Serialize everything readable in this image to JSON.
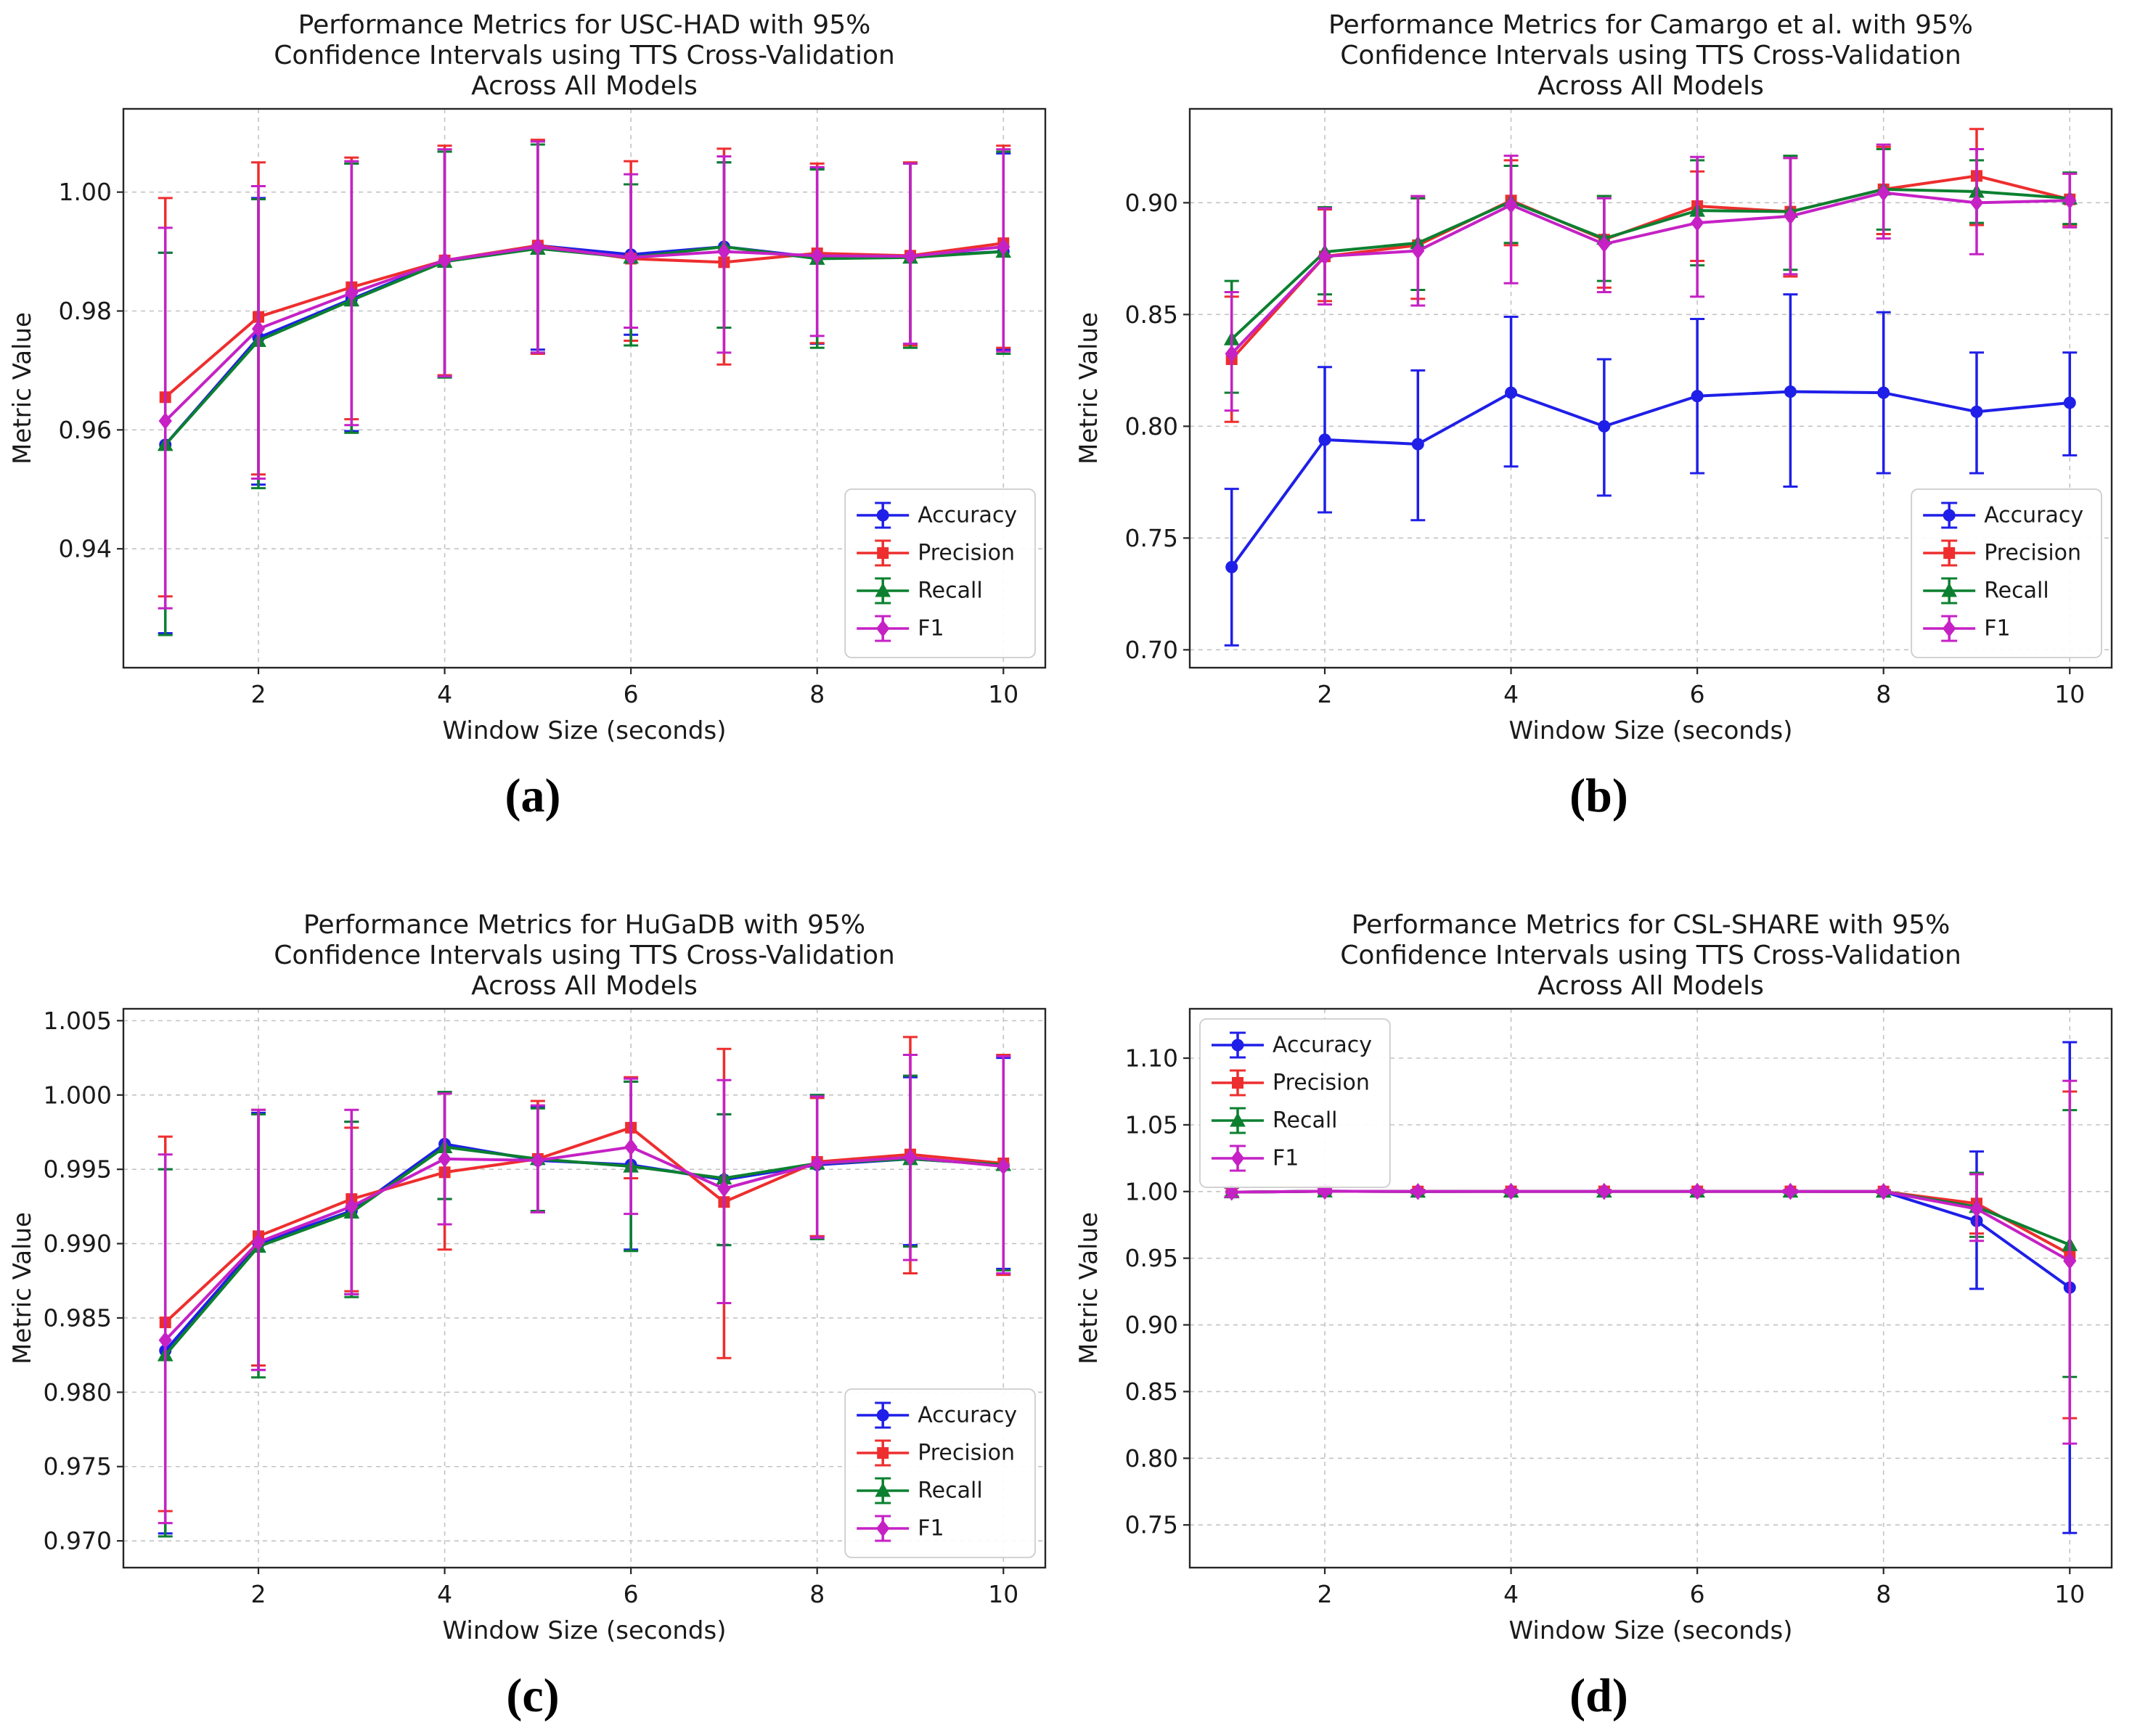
{
  "figure": {
    "background": "#ffffff",
    "axis_color": "#262626",
    "grid_color": "#c3c3c3",
    "text_color": "#1a1a1a",
    "legend_border_color": "#cccccc"
  },
  "chart_data": [
    {
      "id": "a",
      "type": "line",
      "caption": "(a)",
      "title_lines": [
        "Performance Metrics for USC-HAD with 95%",
        "Confidence Intervals using TTS Cross-Validation",
        "Across All Models"
      ],
      "xlabel": "Window Size (seconds)",
      "ylabel": "Metric Value",
      "x": [
        1,
        2,
        3,
        4,
        5,
        6,
        7,
        8,
        9,
        10
      ],
      "xlim": [
        0.55,
        10.45
      ],
      "xticks": [
        2,
        4,
        6,
        8,
        10
      ],
      "ylim": [
        0.92,
        1.014
      ],
      "yticks": [
        0.94,
        0.96,
        0.98,
        1.0
      ],
      "ytick_decimals": 2,
      "grid": true,
      "legend": {
        "position": "lower-right"
      },
      "series": [
        {
          "name": "Accuracy",
          "color": "#1f1fe8",
          "marker": "circle",
          "values": [
            0.9575,
            0.9755,
            0.982,
            0.9885,
            0.991,
            0.9895,
            0.9908,
            0.989,
            0.9892,
            0.99
          ],
          "err_low": [
            0.9258,
            0.9508,
            0.9598,
            0.969,
            0.9735,
            0.976,
            0.9772,
            0.9745,
            0.9742,
            0.9735
          ],
          "err_high": [
            0.9898,
            0.999,
            1.0048,
            1.0068,
            1.0085,
            1.0013,
            1.005,
            1.004,
            1.0048,
            1.0065
          ]
        },
        {
          "name": "Precision",
          "color": "#ee2e2e",
          "marker": "square",
          "values": [
            0.9655,
            0.979,
            0.984,
            0.9885,
            0.991,
            0.9888,
            0.9882,
            0.9897,
            0.9893,
            0.9914
          ],
          "err_low": [
            0.932,
            0.9525,
            0.9618,
            0.9692,
            0.9728,
            0.975,
            0.971,
            0.9746,
            0.9742,
            0.9738
          ],
          "err_high": [
            0.999,
            1.005,
            1.0058,
            1.0078,
            1.0088,
            1.0052,
            1.0073,
            1.0048,
            1.005,
            1.0078
          ]
        },
        {
          "name": "Recall",
          "color": "#0c8030",
          "marker": "triangle",
          "values": [
            0.9575,
            0.975,
            0.9818,
            0.9883,
            0.9905,
            0.989,
            0.9908,
            0.9888,
            0.989,
            0.99
          ],
          "err_low": [
            0.9255,
            0.9502,
            0.9595,
            0.9688,
            0.973,
            0.9742,
            0.9772,
            0.9738,
            0.9738,
            0.9728
          ],
          "err_high": [
            0.9898,
            0.9988,
            1.0048,
            1.0068,
            1.008,
            1.0013,
            1.005,
            1.0038,
            1.0048,
            1.0068
          ]
        },
        {
          "name": "F1",
          "color": "#c521c5",
          "marker": "diamond",
          "values": [
            0.9615,
            0.977,
            0.983,
            0.9885,
            0.9908,
            0.989,
            0.99,
            0.9893,
            0.9892,
            0.9908
          ],
          "err_low": [
            0.93,
            0.9518,
            0.9608,
            0.969,
            0.973,
            0.9772,
            0.973,
            0.9758,
            0.9745,
            0.9732
          ],
          "err_high": [
            0.994,
            1.001,
            1.0052,
            1.0072,
            1.0085,
            1.003,
            1.006,
            1.0042,
            1.0048,
            1.0072
          ]
        }
      ]
    },
    {
      "id": "b",
      "type": "line",
      "caption": "(b)",
      "title_lines": [
        "Performance Metrics for Camargo et al. with 95%",
        "Confidence Intervals using TTS Cross-Validation",
        "Across All Models"
      ],
      "xlabel": "Window Size (seconds)",
      "ylabel": "Metric Value",
      "x": [
        1,
        2,
        3,
        4,
        5,
        6,
        7,
        8,
        9,
        10
      ],
      "xlim": [
        0.55,
        10.45
      ],
      "xticks": [
        2,
        4,
        6,
        8,
        10
      ],
      "ylim": [
        0.692,
        0.942
      ],
      "yticks": [
        0.7,
        0.75,
        0.8,
        0.85,
        0.9
      ],
      "ytick_decimals": 2,
      "grid": true,
      "legend": {
        "position": "lower-right"
      },
      "series": [
        {
          "name": "Accuracy",
          "color": "#1f1fe8",
          "marker": "circle",
          "values": [
            0.737,
            0.794,
            0.792,
            0.815,
            0.8,
            0.8135,
            0.8155,
            0.815,
            0.8065,
            0.8105
          ],
          "err_low": [
            0.702,
            0.7615,
            0.758,
            0.782,
            0.769,
            0.779,
            0.773,
            0.779,
            0.779,
            0.787
          ],
          "err_high": [
            0.772,
            0.8265,
            0.825,
            0.849,
            0.83,
            0.848,
            0.859,
            0.851,
            0.833,
            0.833
          ]
        },
        {
          "name": "Precision",
          "color": "#ee2e2e",
          "marker": "square",
          "values": [
            0.83,
            0.876,
            0.881,
            0.901,
            0.8835,
            0.8985,
            0.896,
            0.906,
            0.912,
            0.9015
          ],
          "err_low": [
            0.802,
            0.856,
            0.857,
            0.881,
            0.862,
            0.874,
            0.867,
            0.886,
            0.89,
            0.89
          ],
          "err_high": [
            0.858,
            0.897,
            0.902,
            0.919,
            0.903,
            0.914,
            0.92,
            0.925,
            0.933,
            0.913
          ]
        },
        {
          "name": "Recall",
          "color": "#0c8030",
          "marker": "triangle",
          "values": [
            0.839,
            0.878,
            0.882,
            0.9005,
            0.884,
            0.8965,
            0.896,
            0.906,
            0.905,
            0.902
          ],
          "err_low": [
            0.815,
            0.859,
            0.861,
            0.882,
            0.865,
            0.872,
            0.87,
            0.888,
            0.891,
            0.8905
          ],
          "err_high": [
            0.865,
            0.898,
            0.902,
            0.9165,
            0.903,
            0.919,
            0.921,
            0.924,
            0.919,
            0.9135
          ]
        },
        {
          "name": "F1",
          "color": "#c521c5",
          "marker": "diamond",
          "values": [
            0.8325,
            0.876,
            0.8785,
            0.899,
            0.8815,
            0.891,
            0.894,
            0.9045,
            0.9,
            0.901
          ],
          "err_low": [
            0.807,
            0.8545,
            0.854,
            0.864,
            0.86,
            0.858,
            0.868,
            0.884,
            0.877,
            0.889
          ],
          "err_high": [
            0.86,
            0.8975,
            0.903,
            0.921,
            0.902,
            0.9205,
            0.92,
            0.926,
            0.924,
            0.913
          ]
        }
      ]
    },
    {
      "id": "c",
      "type": "line",
      "caption": "(c)",
      "title_lines": [
        "Performance Metrics for HuGaDB with 95%",
        "Confidence Intervals using TTS Cross-Validation",
        "Across All Models"
      ],
      "xlabel": "Window Size (seconds)",
      "ylabel": "Metric Value",
      "x": [
        1,
        2,
        3,
        4,
        5,
        6,
        7,
        8,
        9,
        10
      ],
      "xlim": [
        0.55,
        10.45
      ],
      "xticks": [
        2,
        4,
        6,
        8,
        10
      ],
      "ylim": [
        0.9682,
        1.0058
      ],
      "yticks": [
        0.97,
        0.975,
        0.98,
        0.985,
        0.99,
        0.995,
        1.0,
        1.005
      ],
      "ytick_decimals": 3,
      "grid": true,
      "legend": {
        "position": "lower-right"
      },
      "series": [
        {
          "name": "Accuracy",
          "color": "#1f1fe8",
          "marker": "circle",
          "values": [
            0.9828,
            0.99,
            0.9922,
            0.9967,
            0.9956,
            0.9953,
            0.9943,
            0.9953,
            0.9957,
            0.9953
          ],
          "err_low": [
            0.9705,
            0.9815,
            0.9866,
            0.993,
            0.9921,
            0.9896,
            0.9899,
            0.9905,
            0.9899,
            0.9883
          ],
          "err_high": [
            0.995,
            0.9988,
            0.9982,
            1.0002,
            0.9992,
            1.0009,
            0.9987,
            1.0,
            1.0012,
            1.0025
          ]
        },
        {
          "name": "Precision",
          "color": "#ee2e2e",
          "marker": "square",
          "values": [
            0.9847,
            0.9905,
            0.993,
            0.9948,
            0.9957,
            0.9978,
            0.9928,
            0.9955,
            0.996,
            0.9954
          ],
          "err_low": [
            0.972,
            0.9818,
            0.9868,
            0.9896,
            0.9921,
            0.9944,
            0.9823,
            0.9905,
            0.988,
            0.9879
          ],
          "err_high": [
            0.9972,
            0.999,
            0.9978,
            1.0001,
            0.9996,
            1.0012,
            1.0031,
            0.9998,
            1.0039,
            1.0027
          ]
        },
        {
          "name": "Recall",
          "color": "#0c8030",
          "marker": "triangle",
          "values": [
            0.9825,
            0.9898,
            0.9921,
            0.9965,
            0.9957,
            0.9952,
            0.9944,
            0.9954,
            0.9957,
            0.9953
          ],
          "err_low": [
            0.9703,
            0.981,
            0.9864,
            0.993,
            0.9922,
            0.9895,
            0.9899,
            0.9903,
            0.9898,
            0.9882
          ],
          "err_high": [
            0.995,
            0.9987,
            0.9982,
            1.0002,
            0.9991,
            1.0009,
            0.9987,
            1.0,
            1.0013,
            1.0026
          ]
        },
        {
          "name": "F1",
          "color": "#c521c5",
          "marker": "diamond",
          "values": [
            0.9835,
            0.9901,
            0.9925,
            0.9957,
            0.9956,
            0.9965,
            0.9937,
            0.9954,
            0.9958,
            0.9952
          ],
          "err_low": [
            0.9712,
            0.9815,
            0.9866,
            0.9913,
            0.9921,
            0.992,
            0.986,
            0.9904,
            0.9889,
            0.988
          ],
          "err_high": [
            0.996,
            0.999,
            0.999,
            1.0001,
            0.9993,
            1.0011,
            1.001,
            0.9999,
            1.0027,
            1.0026
          ]
        }
      ]
    },
    {
      "id": "d",
      "type": "line",
      "caption": "(d)",
      "title_lines": [
        "Performance Metrics for CSL-SHARE with 95%",
        "Confidence Intervals using TTS Cross-Validation",
        "Across All Models"
      ],
      "xlabel": "Window Size (seconds)",
      "ylabel": "Metric Value",
      "x": [
        1,
        2,
        3,
        4,
        5,
        6,
        7,
        8,
        9,
        10
      ],
      "xlim": [
        0.55,
        10.45
      ],
      "xticks": [
        2,
        4,
        6,
        8,
        10
      ],
      "ylim": [
        0.718,
        1.137
      ],
      "yticks": [
        0.75,
        0.8,
        0.85,
        0.9,
        0.95,
        1.0,
        1.05,
        1.1
      ],
      "ytick_decimals": 2,
      "grid": true,
      "legend": {
        "position": "upper-left"
      },
      "series": [
        {
          "name": "Accuracy",
          "color": "#1f1fe8",
          "marker": "circle",
          "values": [
            0.9995,
            1.0002,
            1.0,
            1.0001,
            1.0001,
            1.0001,
            1.0001,
            1.0,
            0.978,
            0.928
          ],
          "err_low": [
            0.996,
            0.9986,
            0.9989,
            0.9992,
            0.9992,
            0.9992,
            0.9992,
            0.9991,
            0.927,
            0.744
          ],
          "err_high": [
            1.003,
            1.0018,
            1.0011,
            1.001,
            1.001,
            1.001,
            1.001,
            1.0009,
            1.03,
            1.112
          ]
        },
        {
          "name": "Precision",
          "color": "#ee2e2e",
          "marker": "square",
          "values": [
            0.9995,
            1.0002,
            1.0,
            1.0001,
            1.0001,
            1.0001,
            1.0001,
            1.0,
            0.991,
            0.953
          ],
          "err_low": [
            0.9962,
            0.9986,
            0.9989,
            0.9992,
            0.9992,
            0.9992,
            0.9992,
            0.9991,
            0.9685,
            0.83
          ],
          "err_high": [
            1.0028,
            1.0018,
            1.0011,
            1.001,
            1.001,
            1.001,
            1.001,
            1.0009,
            1.013,
            1.075
          ]
        },
        {
          "name": "Recall",
          "color": "#0c8030",
          "marker": "triangle",
          "values": [
            0.9995,
            1.0002,
            1.0,
            1.0001,
            1.0001,
            1.0001,
            1.0001,
            1.0,
            0.9885,
            0.96
          ],
          "err_low": [
            0.9961,
            0.9986,
            0.9989,
            0.9992,
            0.9992,
            0.9992,
            0.9992,
            0.9991,
            0.966,
            0.861
          ],
          "err_high": [
            1.0029,
            1.0018,
            1.0011,
            1.001,
            1.001,
            1.001,
            1.001,
            1.0009,
            1.014,
            1.061
          ]
        },
        {
          "name": "F1",
          "color": "#c521c5",
          "marker": "diamond",
          "values": [
            0.9995,
            1.0002,
            1.0,
            1.0001,
            1.0001,
            1.0001,
            1.0001,
            1.0,
            0.987,
            0.948
          ],
          "err_low": [
            0.996,
            0.9985,
            0.9988,
            0.9991,
            0.9991,
            0.9991,
            0.9991,
            0.999,
            0.963,
            0.811
          ],
          "err_high": [
            1.003,
            1.0019,
            1.0012,
            1.0011,
            1.0011,
            1.0011,
            1.0011,
            1.001,
            1.013,
            1.083
          ]
        }
      ]
    }
  ]
}
